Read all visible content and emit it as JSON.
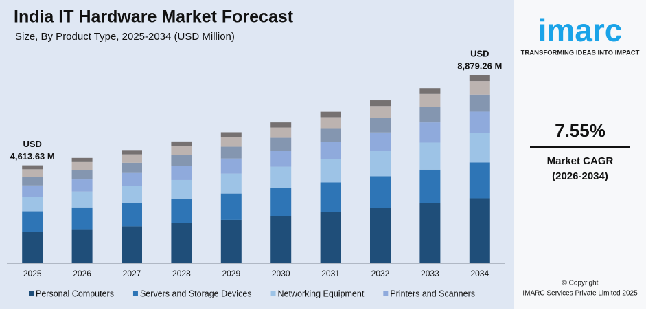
{
  "chart_data": {
    "type": "stacked-bar",
    "title": "India IT Hardware Market Forecast",
    "subtitle": "Size, By Product Type, 2025-2034 (USD Million)",
    "categories": [
      "2025",
      "2026",
      "2027",
      "2028",
      "2029",
      "2030",
      "2031",
      "2032",
      "2033",
      "2034"
    ],
    "series": [
      {
        "name": "Personal Computers",
        "color": "#1f4e79",
        "values": [
          1476,
          1602,
          1738,
          1884,
          2044,
          2217,
          2404,
          2606,
          2826,
          3063
        ]
      },
      {
        "name": "Servers and Storage Devices",
        "color": "#2e75b6",
        "values": [
          969,
          1031,
          1097,
          1167,
          1241,
          1320,
          1404,
          1493,
          1587,
          1687
        ]
      },
      {
        "name": "Networking Equipment",
        "color": "#9dc3e6",
        "values": [
          692,
          747,
          806,
          871,
          940,
          1014,
          1095,
          1182,
          1275,
          1376
        ]
      },
      {
        "name": "Printers and Scanners",
        "color": "#8faadc",
        "values": [
          531,
          571,
          614,
          660,
          710,
          763,
          821,
          883,
          950,
          1021
        ]
      },
      {
        "color": "#8496b0",
        "values": [
          415,
          447,
          480,
          517,
          556,
          598,
          643,
          691,
          743,
          799
        ]
      },
      {
        "color": "#bcb3b0",
        "values": [
          346,
          371,
          397,
          425,
          455,
          487,
          521,
          558,
          597,
          639
        ]
      },
      {
        "color": "#767171",
        "values": [
          185,
          195,
          205,
          216,
          228,
          240,
          252,
          266,
          279,
          294
        ]
      }
    ],
    "annotations": [
      {
        "lines": [
          "USD",
          "4,613.63 M"
        ]
      },
      {
        "lines": [
          "USD",
          "8,879.26 M"
        ]
      }
    ]
  },
  "sidebar": {
    "logo": "imarc",
    "tagline": "TRANSFORMING IDEAS INTO IMPACT",
    "cagr": "7.55%",
    "cagr_label": "Market CAGR",
    "cagr_period": "(2026-2034)",
    "copyright": "© Copyright",
    "company": "IMARC Services Private Limited 2025"
  }
}
